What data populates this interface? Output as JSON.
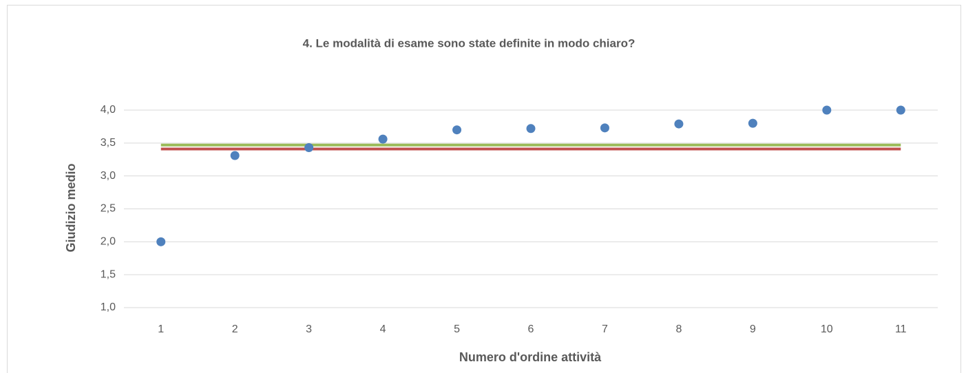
{
  "chart_data": {
    "type": "scatter",
    "title": "4. Le modalità di esame sono state definite in modo chiaro?",
    "xlabel": "Numero d'ordine attività",
    "ylabel": "Giudizio medio",
    "x": [
      1,
      2,
      3,
      4,
      5,
      6,
      7,
      8,
      9,
      10,
      11
    ],
    "series": [
      {
        "color": "#4f81bd",
        "values": [
          2.0,
          3.31,
          3.43,
          3.56,
          3.7,
          3.72,
          3.73,
          3.79,
          3.8,
          4.0,
          4.0
        ]
      }
    ],
    "lines": [
      {
        "color": "#9bbb59",
        "value": 3.47
      },
      {
        "color": "#c0504d",
        "value": 3.41
      }
    ],
    "xlim": [
      0.5,
      11.5
    ],
    "xticks": [
      1,
      2,
      3,
      4,
      5,
      6,
      7,
      8,
      9,
      10,
      11
    ],
    "ylim": [
      1,
      4
    ],
    "yticks": [
      {
        "value": 1,
        "label": "1,0"
      },
      {
        "value": 1.5,
        "label": "1,5"
      },
      {
        "value": 2,
        "label": "2,0"
      },
      {
        "value": 2.5,
        "label": "2,5"
      },
      {
        "value": 3,
        "label": "3,0"
      },
      {
        "value": 3.5,
        "label": "3,5"
      },
      {
        "value": 4,
        "label": "4,0"
      }
    ],
    "grid": true
  }
}
